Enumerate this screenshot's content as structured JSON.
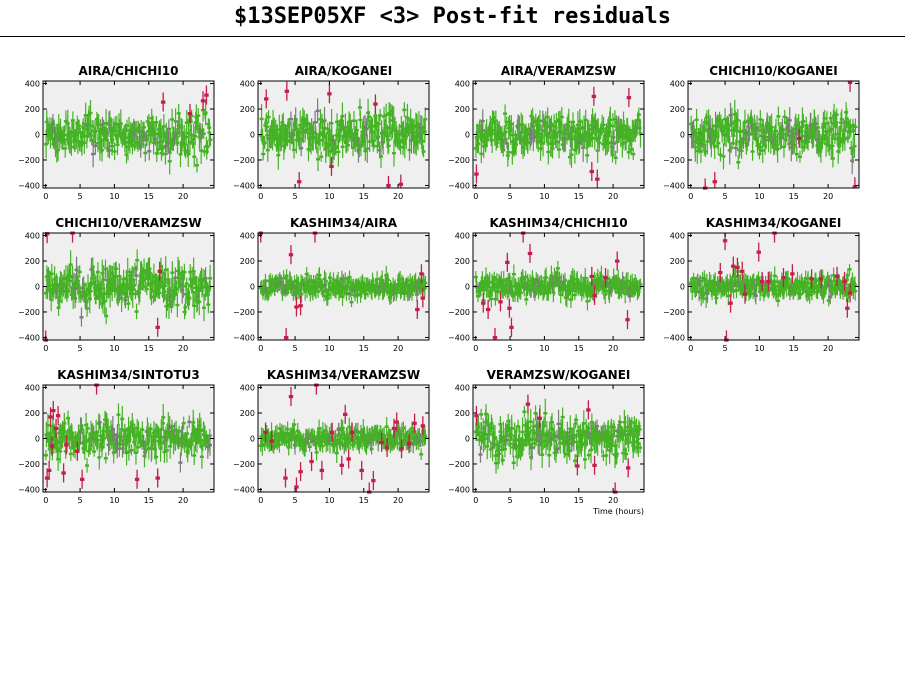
{
  "title": "$13SEP05XF <3> Post-fit residuals",
  "chart_data": {
    "type": "scatter",
    "title": "$13SEP05XF <3> Post-fit residuals",
    "xlabel": "Time (hours)",
    "ylabel": "",
    "xlim": [
      -0.4,
      24.5
    ],
    "ylim": [
      -420,
      420
    ],
    "xticks": [
      0,
      5,
      10,
      15,
      20
    ],
    "yticks": [
      -400,
      -200,
      0,
      200,
      400
    ],
    "colors": {
      "good": "#44b224",
      "flagged": "#c41e4a",
      "grey": "#7a7a7a",
      "bg": "#efefef"
    },
    "panels": [
      {
        "name": "AIRA/CHICHI10",
        "rms": 80,
        "outliers": [
          [
            17.1,
            255
          ],
          [
            21,
            165
          ],
          [
            22.9,
            265
          ],
          [
            23.4,
            310
          ]
        ]
      },
      {
        "name": "AIRA/KOGANEI",
        "rms": 85,
        "outliers": [
          [
            0.8,
            280
          ],
          [
            3.8,
            340
          ],
          [
            5.6,
            -370
          ],
          [
            10.3,
            -250
          ],
          [
            16.7,
            240
          ],
          [
            18.6,
            -400
          ],
          [
            20.4,
            -390
          ],
          [
            10,
            320
          ]
        ]
      },
      {
        "name": "AIRA/VERAMZSW",
        "rms": 80,
        "outliers": [
          [
            0.1,
            -310
          ],
          [
            16.9,
            -290
          ],
          [
            17.2,
            300
          ],
          [
            17.7,
            -350
          ],
          [
            22.3,
            290
          ]
        ]
      },
      {
        "name": "CHICHI10/KOGANEI",
        "rms": 85,
        "outliers": [
          [
            2.1,
            -420
          ],
          [
            3.5,
            -370
          ],
          [
            23.2,
            410
          ],
          [
            23.9,
            -410
          ],
          [
            15.8,
            -30
          ]
        ]
      },
      {
        "name": "CHICHI10/VERAMZSW",
        "rms": 85,
        "outliers": [
          [
            0.2,
            415
          ],
          [
            3.9,
            420
          ],
          [
            16.3,
            -320
          ],
          [
            16.6,
            120
          ],
          [
            0,
            -420
          ]
        ]
      },
      {
        "name": "KASHIM34/AIRA",
        "rms": 40,
        "outliers": [
          [
            0,
            420
          ],
          [
            3.7,
            -400
          ],
          [
            4.4,
            250
          ],
          [
            5.2,
            -160
          ],
          [
            5.8,
            -150
          ],
          [
            7.9,
            430
          ],
          [
            22.8,
            -180
          ],
          [
            23.6,
            -90
          ],
          [
            23.4,
            100
          ]
        ]
      },
      {
        "name": "KASHIM34/CHICHI10",
        "rms": 45,
        "outliers": [
          [
            1.1,
            -130
          ],
          [
            1.8,
            -180
          ],
          [
            2.8,
            -400
          ],
          [
            3.6,
            -120
          ],
          [
            4.6,
            190
          ],
          [
            4.9,
            -170
          ],
          [
            5.2,
            -320
          ],
          [
            6.9,
            420
          ],
          [
            7.9,
            260
          ],
          [
            16.9,
            80
          ],
          [
            18.9,
            70
          ],
          [
            20.6,
            200
          ],
          [
            22.1,
            -260
          ],
          [
            17.3,
            -70
          ]
        ]
      },
      {
        "name": "KASHIM34/KOGANEI",
        "rms": 40,
        "outliers": [
          [
            4.3,
            110
          ],
          [
            5.0,
            360
          ],
          [
            5.2,
            -440
          ],
          [
            5.8,
            -130
          ],
          [
            6.2,
            160
          ],
          [
            6.8,
            150
          ],
          [
            7.5,
            120
          ],
          [
            7.9,
            -60
          ],
          [
            9.9,
            270
          ],
          [
            10.4,
            40
          ],
          [
            11.3,
            40
          ],
          [
            12.2,
            420
          ],
          [
            13.5,
            70
          ],
          [
            14.8,
            100
          ],
          [
            17.6,
            60
          ],
          [
            19,
            60
          ],
          [
            21.3,
            80
          ],
          [
            22.4,
            40
          ],
          [
            22.8,
            -170
          ],
          [
            23.2,
            -50
          ]
        ]
      },
      {
        "name": "KASHIM34/SINTOTU3",
        "rms": 75,
        "outliers": [
          [
            0.2,
            -310
          ],
          [
            0.5,
            -250
          ],
          [
            0.7,
            170
          ],
          [
            0.9,
            -60
          ],
          [
            1.1,
            220
          ],
          [
            1.5,
            80
          ],
          [
            1.8,
            180
          ],
          [
            2.6,
            -270
          ],
          [
            3.0,
            -50
          ],
          [
            4.6,
            -100
          ],
          [
            5.3,
            -320
          ],
          [
            7.4,
            430
          ],
          [
            13.3,
            -320
          ],
          [
            16.3,
            -310
          ]
        ]
      },
      {
        "name": "KASHIM34/VERAMZSW",
        "rms": 45,
        "outliers": [
          [
            0.7,
            50
          ],
          [
            1.6,
            -20
          ],
          [
            3.6,
            -310
          ],
          [
            4.4,
            330
          ],
          [
            5.2,
            -380
          ],
          [
            5.8,
            -260
          ],
          [
            7.4,
            -180
          ],
          [
            8.1,
            430
          ],
          [
            8.9,
            -250
          ],
          [
            10.4,
            50
          ],
          [
            11.8,
            -210
          ],
          [
            12.3,
            190
          ],
          [
            12.8,
            -160
          ],
          [
            14.7,
            -250
          ],
          [
            15.8,
            -430
          ],
          [
            16.4,
            -330
          ],
          [
            17.6,
            -30
          ],
          [
            18.4,
            -70
          ],
          [
            19.4,
            80
          ],
          [
            19.8,
            130
          ],
          [
            20.5,
            -80
          ],
          [
            22.4,
            120
          ],
          [
            23.6,
            100
          ],
          [
            13.3,
            50
          ],
          [
            21.6,
            -40
          ]
        ]
      },
      {
        "name": "VERAMZSW/KOGANEI",
        "rms": 85,
        "outliers": [
          [
            0.1,
            180
          ],
          [
            7.6,
            270
          ],
          [
            9.3,
            160
          ],
          [
            14.8,
            -215
          ],
          [
            16.4,
            225
          ],
          [
            17.3,
            -210
          ],
          [
            20.3,
            -435
          ],
          [
            22.2,
            -230
          ]
        ]
      }
    ]
  }
}
